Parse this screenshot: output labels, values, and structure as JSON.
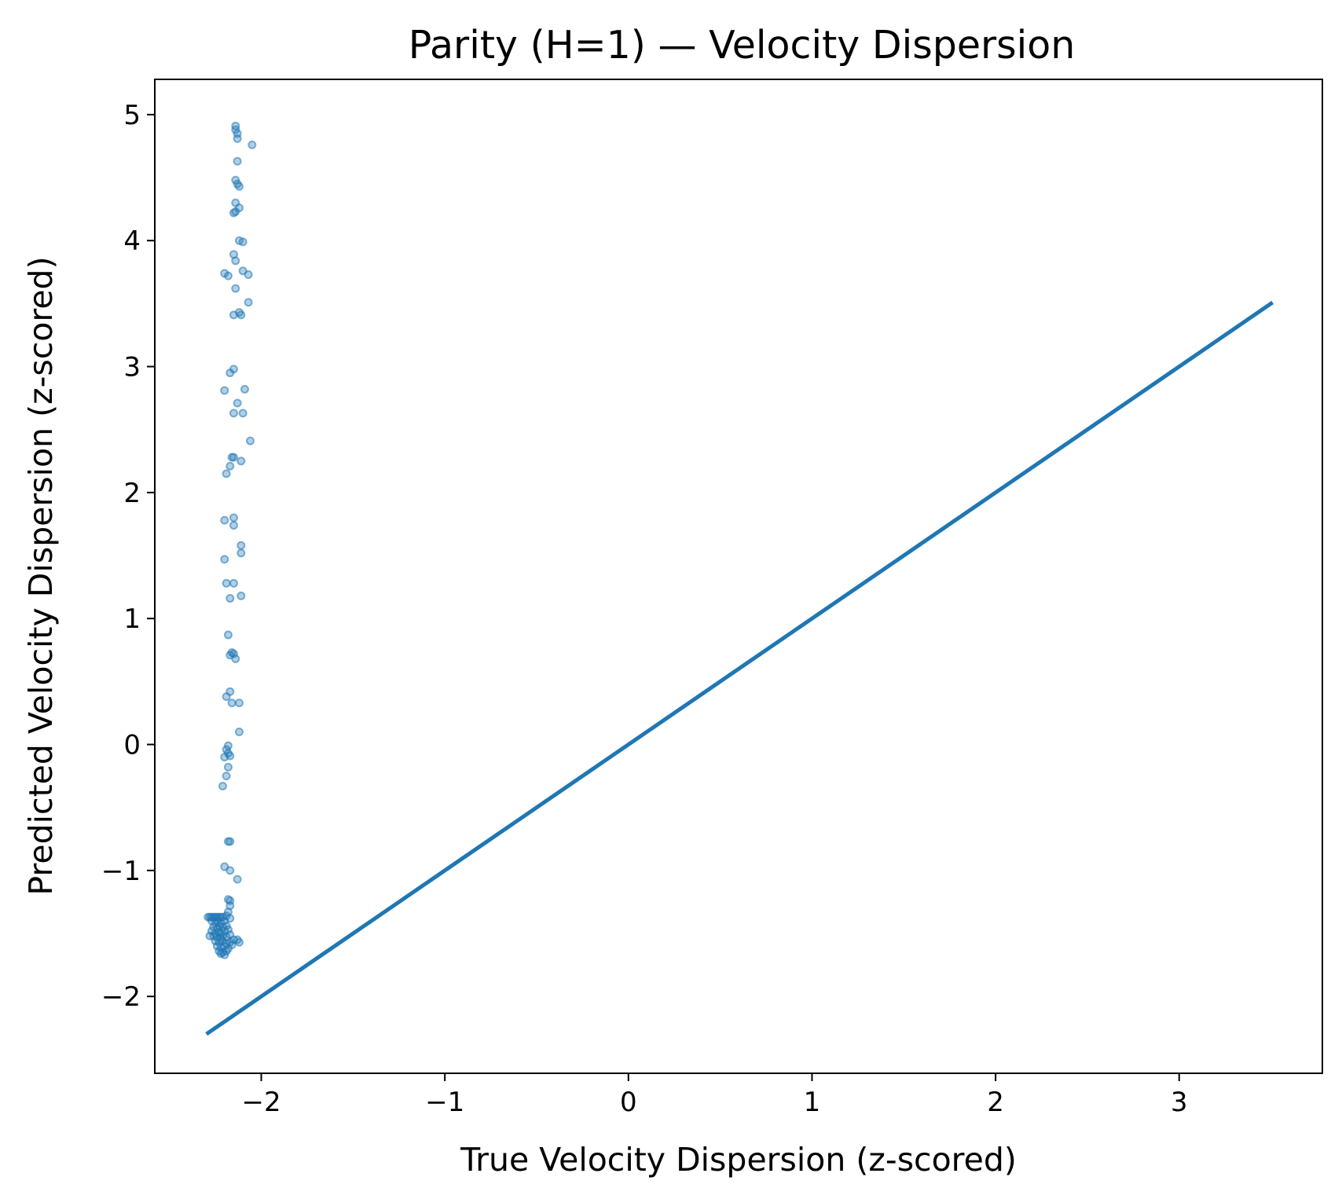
{
  "chart_data": {
    "type": "scatter",
    "title": "Parity (H=1) — Velocity Dispersion",
    "xlabel": "True Velocity Dispersion (z-scored)",
    "ylabel": "Predicted Velocity Dispersion (z-scored)",
    "xlim": [
      -2.58,
      3.78
    ],
    "ylim": [
      -2.61,
      5.28
    ],
    "xticks": [
      -2,
      -1,
      0,
      1,
      2,
      3
    ],
    "yticks": [
      -2,
      -1,
      0,
      1,
      2,
      3,
      4,
      5
    ],
    "grid": false,
    "legend": "none",
    "colors": {
      "series": "#1f77b4",
      "axes": "#000000"
    },
    "reference_line": {
      "x": [
        -2.29,
        3.5
      ],
      "y": [
        -2.29,
        3.5
      ]
    },
    "series": [
      {
        "points": [
          [
            -2.14,
            4.91
          ],
          [
            -2.14,
            4.88
          ],
          [
            -2.13,
            4.85
          ],
          [
            -2.13,
            4.81
          ],
          [
            -2.05,
            4.76
          ],
          [
            -2.13,
            4.63
          ],
          [
            -2.14,
            4.48
          ],
          [
            -2.13,
            4.45
          ],
          [
            -2.12,
            4.43
          ],
          [
            -2.14,
            4.3
          ],
          [
            -2.12,
            4.26
          ],
          [
            -2.15,
            4.22
          ],
          [
            -2.14,
            4.23
          ],
          [
            -2.12,
            4.0
          ],
          [
            -2.1,
            3.99
          ],
          [
            -2.15,
            3.89
          ],
          [
            -2.14,
            3.84
          ],
          [
            -2.2,
            3.74
          ],
          [
            -2.18,
            3.72
          ],
          [
            -2.1,
            3.76
          ],
          [
            -2.07,
            3.73
          ],
          [
            -2.14,
            3.62
          ],
          [
            -2.07,
            3.51
          ],
          [
            -2.15,
            3.41
          ],
          [
            -2.11,
            3.41
          ],
          [
            -2.12,
            3.43
          ],
          [
            -2.15,
            2.98
          ],
          [
            -2.17,
            2.95
          ],
          [
            -2.2,
            2.81
          ],
          [
            -2.09,
            2.82
          ],
          [
            -2.13,
            2.71
          ],
          [
            -2.15,
            2.63
          ],
          [
            -2.1,
            2.63
          ],
          [
            -2.06,
            2.41
          ],
          [
            -2.16,
            2.28
          ],
          [
            -2.15,
            2.28
          ],
          [
            -2.11,
            2.25
          ],
          [
            -2.17,
            2.21
          ],
          [
            -2.19,
            2.15
          ],
          [
            -2.15,
            1.8
          ],
          [
            -2.2,
            1.78
          ],
          [
            -2.15,
            1.74
          ],
          [
            -2.11,
            1.58
          ],
          [
            -2.11,
            1.52
          ],
          [
            -2.2,
            1.47
          ],
          [
            -2.19,
            1.28
          ],
          [
            -2.15,
            1.28
          ],
          [
            -2.11,
            1.18
          ],
          [
            -2.17,
            1.16
          ],
          [
            -2.18,
            0.87
          ],
          [
            -2.16,
            0.73
          ],
          [
            -2.17,
            0.71
          ],
          [
            -2.15,
            0.72
          ],
          [
            -2.14,
            0.68
          ],
          [
            -2.17,
            0.42
          ],
          [
            -2.19,
            0.38
          ],
          [
            -2.16,
            0.33
          ],
          [
            -2.12,
            0.33
          ],
          [
            -2.12,
            0.1
          ],
          [
            -2.18,
            -0.01
          ],
          [
            -2.19,
            -0.04
          ],
          [
            -2.18,
            -0.07
          ],
          [
            -2.2,
            -0.1
          ],
          [
            -2.17,
            -0.09
          ],
          [
            -2.18,
            -0.18
          ],
          [
            -2.19,
            -0.25
          ],
          [
            -2.21,
            -0.33
          ],
          [
            -2.18,
            -0.77
          ],
          [
            -2.17,
            -0.77
          ],
          [
            -2.2,
            -0.97
          ],
          [
            -2.17,
            -1.0
          ],
          [
            -2.13,
            -1.07
          ],
          [
            -2.18,
            -1.23
          ],
          [
            -2.17,
            -1.24
          ],
          [
            -2.17,
            -1.28
          ],
          [
            -2.18,
            -1.33
          ],
          [
            -2.17,
            -1.38
          ],
          [
            -2.19,
            -1.36
          ],
          [
            -2.29,
            -1.37
          ],
          [
            -2.28,
            -1.37
          ],
          [
            -2.27,
            -1.37
          ],
          [
            -2.26,
            -1.37
          ],
          [
            -2.25,
            -1.37
          ],
          [
            -2.24,
            -1.37
          ],
          [
            -2.23,
            -1.37
          ],
          [
            -2.22,
            -1.37
          ],
          [
            -2.21,
            -1.37
          ],
          [
            -2.27,
            -1.4
          ],
          [
            -2.25,
            -1.42
          ],
          [
            -2.24,
            -1.4
          ],
          [
            -2.22,
            -1.42
          ],
          [
            -2.2,
            -1.4
          ],
          [
            -2.26,
            -1.45
          ],
          [
            -2.24,
            -1.46
          ],
          [
            -2.23,
            -1.44
          ],
          [
            -2.21,
            -1.45
          ],
          [
            -2.19,
            -1.44
          ],
          [
            -2.27,
            -1.48
          ],
          [
            -2.25,
            -1.5
          ],
          [
            -2.23,
            -1.49
          ],
          [
            -2.22,
            -1.5
          ],
          [
            -2.2,
            -1.48
          ],
          [
            -2.18,
            -1.47
          ],
          [
            -2.28,
            -1.52
          ],
          [
            -2.26,
            -1.52
          ],
          [
            -2.24,
            -1.53
          ],
          [
            -2.22,
            -1.54
          ],
          [
            -2.21,
            -1.52
          ],
          [
            -2.19,
            -1.53
          ],
          [
            -2.17,
            -1.51
          ],
          [
            -2.25,
            -1.56
          ],
          [
            -2.23,
            -1.57
          ],
          [
            -2.21,
            -1.56
          ],
          [
            -2.19,
            -1.58
          ],
          [
            -2.17,
            -1.57
          ],
          [
            -2.15,
            -1.55
          ],
          [
            -2.13,
            -1.55
          ],
          [
            -2.12,
            -1.57
          ],
          [
            -2.24,
            -1.6
          ],
          [
            -2.22,
            -1.61
          ],
          [
            -2.2,
            -1.6
          ],
          [
            -2.18,
            -1.62
          ],
          [
            -2.16,
            -1.59
          ],
          [
            -2.23,
            -1.64
          ],
          [
            -2.21,
            -1.65
          ],
          [
            -2.2,
            -1.67
          ],
          [
            -2.19,
            -1.64
          ],
          [
            -2.22,
            -1.66
          ]
        ]
      }
    ]
  }
}
